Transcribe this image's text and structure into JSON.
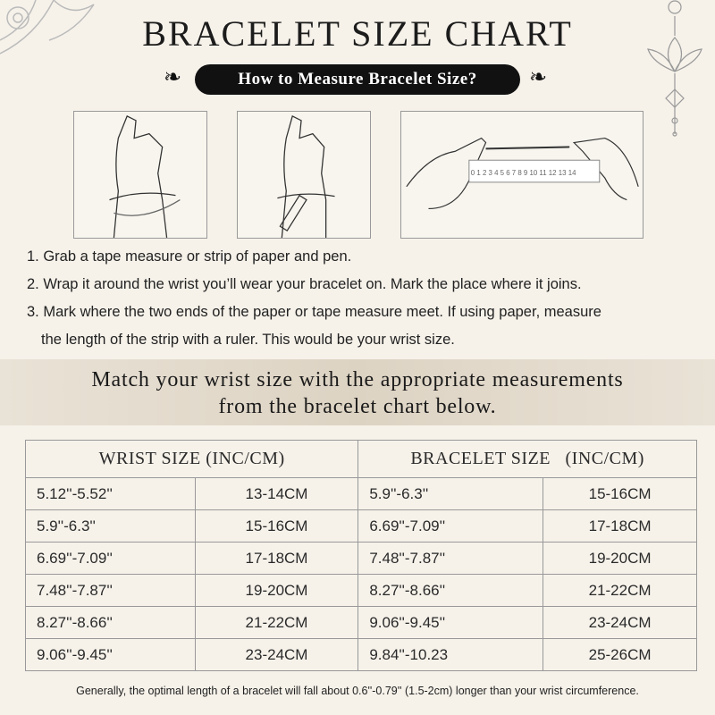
{
  "title": "BRACELET SIZE CHART",
  "subtitle": "How to Measure Bracelet Size?",
  "ruler_numbers": [
    "0",
    "1",
    "2",
    "3",
    "4",
    "5",
    "6",
    "7",
    "8",
    "9",
    "10",
    "11",
    "12",
    "13",
    "14"
  ],
  "steps": [
    "1. Grab a tape measure or strip of paper and pen.",
    "2. Wrap it around the wrist you’ll wear your bracelet on. Mark the place where it joins.",
    "3. Mark where the two ends of the paper or tape measure meet. If using paper, measure",
    "the length of the strip with a ruler. This would be your wrist size."
  ],
  "band": {
    "line1": "Match your wrist size with the appropriate measurements",
    "line2": "from the bracelet chart below."
  },
  "table": {
    "headers": [
      "WRIST SIZE (INC/CM)",
      "BRACELET SIZE   (INC/CM)"
    ],
    "rows": [
      [
        "5.12''-5.52''",
        "13-14CM",
        "5.9''-6.3''",
        "15-16CM"
      ],
      [
        "5.9''-6.3''",
        "15-16CM",
        "6.69''-7.09''",
        "17-18CM"
      ],
      [
        "6.69''-7.09''",
        "17-18CM",
        "7.48''-7.87''",
        "19-20CM"
      ],
      [
        "7.48''-7.87''",
        "19-20CM",
        "8.27''-8.66''",
        "21-22CM"
      ],
      [
        "8.27''-8.66''",
        "21-22CM",
        "9.06''-9.45''",
        "23-24CM"
      ],
      [
        "9.06''-9.45''",
        "23-24CM",
        "9.84''-10.23",
        "25-26CM"
      ]
    ]
  },
  "footer": "Generally, the optimal length of a bracelet will fall about 0.6''-0.79'' (1.5-2cm) longer than your wrist circumference."
}
